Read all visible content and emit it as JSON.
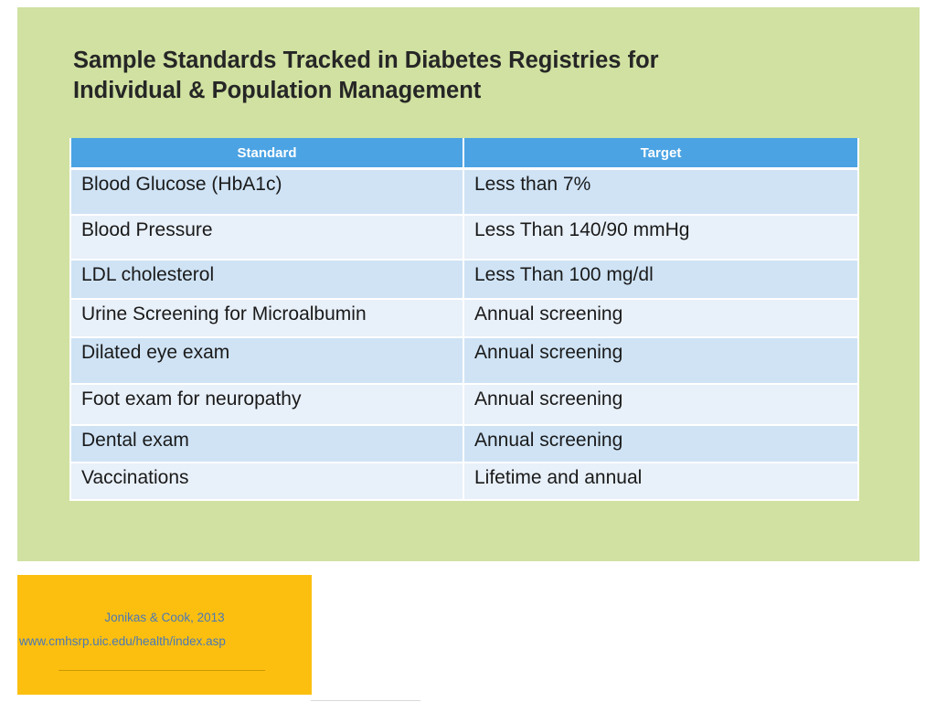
{
  "slide": {
    "title_line1": "Sample Standards Tracked in Diabetes Registries for",
    "title_line2": "Individual & Population Management",
    "table": {
      "headers": [
        "Standard",
        "Target"
      ],
      "rows": [
        [
          "Blood Glucose (HbA1c)",
          "Less than 7%"
        ],
        [
          "Blood Pressure",
          "Less Than 140/90 mmHg"
        ],
        [
          "LDL cholesterol",
          "Less Than 100 mg/dl"
        ],
        [
          "Urine Screening for Microalbumin",
          "Annual screening"
        ],
        [
          "Dilated eye exam",
          "Annual screening"
        ],
        [
          "Foot exam for neuropathy",
          "Annual screening"
        ],
        [
          "Dental exam",
          "Annual screening"
        ],
        [
          "Vaccinations",
          "Lifetime and annual"
        ]
      ]
    },
    "source": {
      "citation": "Jonikas & Cook, 2013",
      "url": "www.cmhsrp.uic.edu/health/index.asp"
    },
    "colors": {
      "panel_bg": "#d0e1a1",
      "header_bg": "#4ba3e3",
      "row_dark": "#cfe3f5",
      "row_light": "#e8f0f9",
      "source_bg": "#fcbf10"
    }
  }
}
